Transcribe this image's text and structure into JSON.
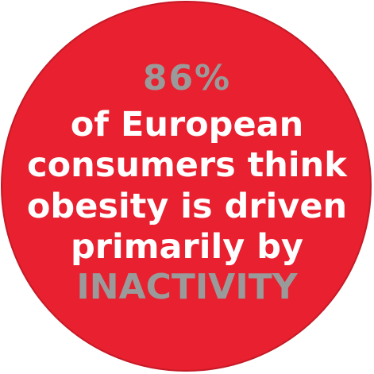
{
  "stat": "86%",
  "lines": [
    "of European",
    "consumers think",
    "obesity is driven",
    "primarily by"
  ],
  "highlight": "INACTIVITY",
  "colors": {
    "circle": "#e8202f",
    "text": "#ffffff",
    "accent": "#9a9a9a",
    "background": "#ffffff"
  }
}
